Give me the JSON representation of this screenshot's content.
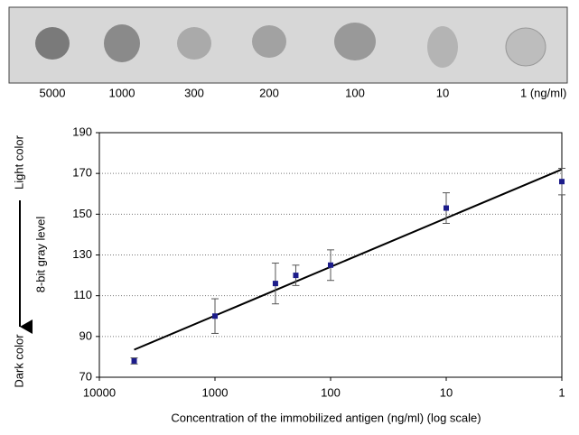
{
  "strip": {
    "labels": [
      "5000",
      "1000",
      "300",
      "200",
      "100",
      "10",
      "1 (ng/ml)"
    ]
  },
  "chart_data": {
    "type": "scatter",
    "y_label": "8-bit gray level",
    "side_labels": [
      "Light color",
      "Dark color"
    ],
    "x_label": "Concentration of the immobilized antigen (ng/ml) (log scale)",
    "x": [
      5000,
      1000,
      300,
      200,
      100,
      10,
      1
    ],
    "series": [
      {
        "color": "#1c1c8a",
        "values": [
          78,
          100,
          116,
          120,
          125,
          153,
          166
        ],
        "errors": [
          1.5,
          8.5,
          10,
          5,
          7.5,
          7.5,
          6.5
        ]
      }
    ],
    "fit": {
      "x": [
        5000,
        1
      ],
      "values": [
        83.5,
        172
      ],
      "color": "#000000"
    },
    "xlim": [
      10000,
      1
    ],
    "xticks": [
      10000,
      1000,
      100,
      10,
      1
    ],
    "log_x": true,
    "ylim": [
      70,
      190
    ],
    "yticks": [
      70,
      90,
      110,
      130,
      150,
      170,
      190
    ],
    "grid": true
  }
}
